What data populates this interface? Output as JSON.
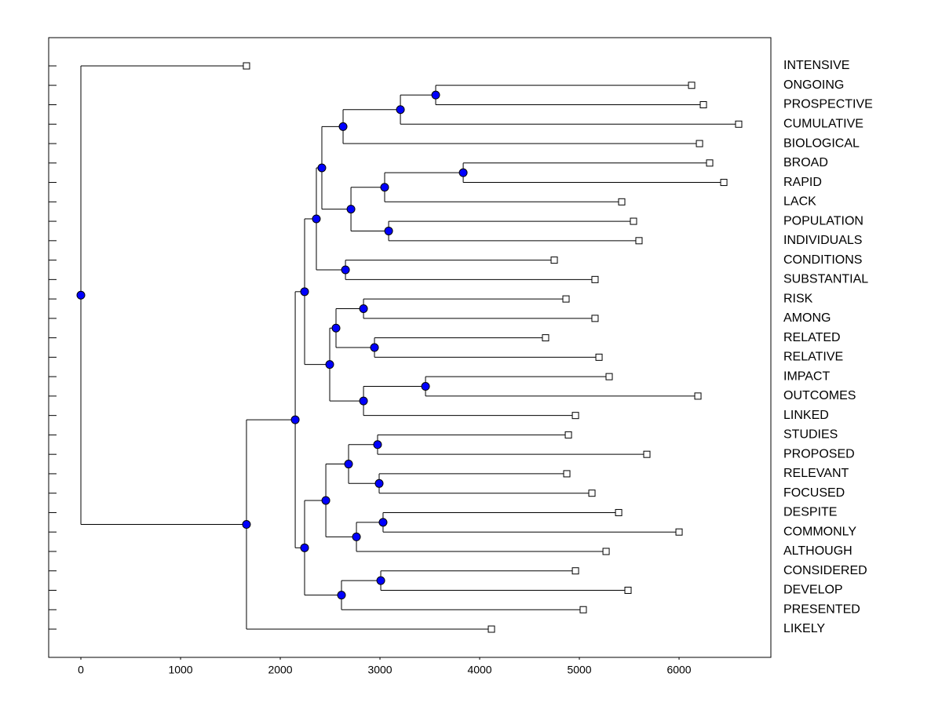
{
  "chart_data": {
    "type": "dendrogram",
    "xlim": [
      -323,
      6921
    ],
    "xticks": [
      0,
      1000,
      2000,
      3000,
      4000,
      5000,
      6000
    ],
    "node_color": "#0000ff",
    "leaf_color": "#ffffff",
    "tree": {
      "height": 0,
      "children": [
        {
          "label": "INTENSIVE",
          "height": 1661
        },
        {
          "height": 1661,
          "children": [
            {
              "height": 2150,
              "children": [
                {
                  "height": 2244,
                  "children": [
                    {
                      "height": 2362,
                      "children": [
                        {
                          "height": 2417,
                          "children": [
                            {
                              "height": 2630,
                              "children": [
                                {
                                  "height": 3205,
                                  "children": [
                                    {
                                      "height": 3559,
                                      "children": [
                                        {
                                          "label": "ONGOING",
                                          "height": 6126
                                        },
                                        {
                                          "label": "PROSPECTIVE",
                                          "height": 6244
                                        }
                                      ]
                                    },
                                    {
                                      "label": "CUMULATIVE",
                                      "height": 6598
                                    }
                                  ]
                                },
                                {
                                  "label": "BIOLOGICAL",
                                  "height": 6205
                                }
                              ]
                            },
                            {
                              "height": 2709,
                              "children": [
                                {
                                  "height": 3047,
                                  "children": [
                                    {
                                      "height": 3835,
                                      "children": [
                                        {
                                          "label": "BROAD",
                                          "height": 6307
                                        },
                                        {
                                          "label": "RAPID",
                                          "height": 6449
                                        }
                                      ]
                                    },
                                    {
                                      "label": "LACK",
                                      "height": 5425
                                    }
                                  ]
                                },
                                {
                                  "height": 3087,
                                  "children": [
                                    {
                                      "label": "POPULATION",
                                      "height": 5543
                                    },
                                    {
                                      "label": "INDIVIDUALS",
                                      "height": 5598
                                    }
                                  ]
                                }
                              ]
                            }
                          ]
                        },
                        {
                          "height": 2654,
                          "children": [
                            {
                              "label": "CONDITIONS",
                              "height": 4748
                            },
                            {
                              "label": "SUBSTANTIAL",
                              "height": 5157
                            }
                          ]
                        }
                      ]
                    },
                    {
                      "height": 2496,
                      "children": [
                        {
                          "height": 2559,
                          "children": [
                            {
                              "height": 2835,
                              "children": [
                                {
                                  "label": "RISK",
                                  "height": 4866
                                },
                                {
                                  "label": "AMONG",
                                  "height": 5157
                                }
                              ]
                            },
                            {
                              "height": 2945,
                              "children": [
                                {
                                  "label": "RELATED",
                                  "height": 4661
                                },
                                {
                                  "label": "RELATIVE",
                                  "height": 5197
                                }
                              ]
                            }
                          ]
                        },
                        {
                          "height": 2835,
                          "children": [
                            {
                              "height": 3457,
                              "children": [
                                {
                                  "label": "IMPACT",
                                  "height": 5299
                                },
                                {
                                  "label": "OUTCOMES",
                                  "height": 6189
                                }
                              ]
                            },
                            {
                              "label": "LINKED",
                              "height": 4961
                            }
                          ]
                        }
                      ]
                    }
                  ]
                },
                {
                  "height": 2244,
                  "children": [
                    {
                      "height": 2457,
                      "children": [
                        {
                          "height": 2685,
                          "children": [
                            {
                              "height": 2976,
                              "children": [
                                {
                                  "label": "STUDIES",
                                  "height": 4890
                                },
                                {
                                  "label": "PROPOSED",
                                  "height": 5677
                                }
                              ]
                            },
                            {
                              "height": 2992,
                              "children": [
                                {
                                  "label": "RELEVANT",
                                  "height": 4874
                                },
                                {
                                  "label": "FOCUSED",
                                  "height": 5126
                                }
                              ]
                            }
                          ]
                        },
                        {
                          "height": 2764,
                          "children": [
                            {
                              "height": 3031,
                              "children": [
                                {
                                  "label": "DESPITE",
                                  "height": 5394
                                },
                                {
                                  "label": "COMMONLY",
                                  "height": 6000
                                }
                              ]
                            },
                            {
                              "label": "ALTHOUGH",
                              "height": 5268
                            }
                          ]
                        }
                      ]
                    },
                    {
                      "height": 2614,
                      "children": [
                        {
                          "height": 3008,
                          "children": [
                            {
                              "label": "CONSIDERED",
                              "height": 4961
                            },
                            {
                              "label": "DEVELOP",
                              "height": 5488
                            }
                          ]
                        },
                        {
                          "label": "PRESENTED",
                          "height": 5039
                        }
                      ]
                    }
                  ]
                }
              ]
            },
            {
              "label": "LIKELY",
              "height": 4118
            }
          ]
        }
      ]
    }
  }
}
